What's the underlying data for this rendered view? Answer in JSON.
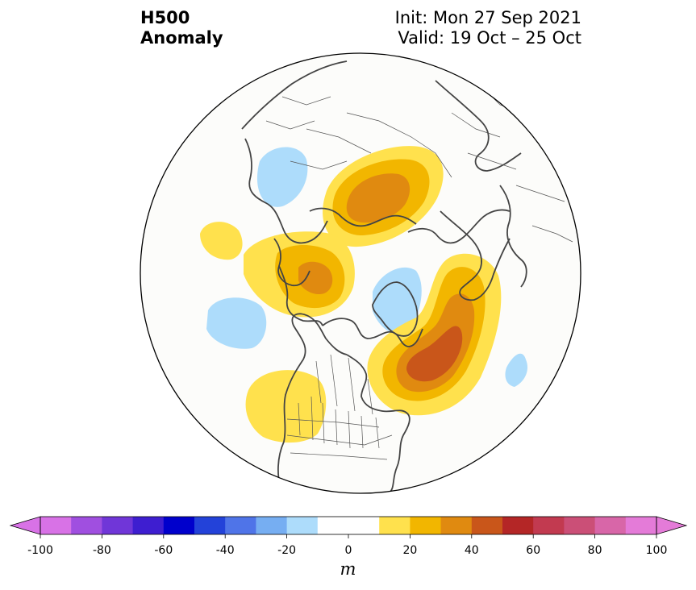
{
  "title": {
    "line1": "H500",
    "line2": "Anomaly",
    "init": "Init: Mon 27 Sep 2021",
    "valid": "Valid: 19 Oct – 25 Oct"
  },
  "colorbar": {
    "unit": "m",
    "ticks": [
      "-100",
      "-80",
      "-60",
      "-40",
      "-20",
      "0",
      "20",
      "40",
      "60",
      "80",
      "100"
    ],
    "colors": [
      "#d872e6",
      "#a04fe0",
      "#7036d8",
      "#3e1ed0",
      "#0000cc",
      "#2342d9",
      "#4f74e8",
      "#76aef2",
      "#addcfb",
      "#ffffff",
      "#ffffff",
      "#ffe14d",
      "#f2b600",
      "#e08a10",
      "#c9561a",
      "#b42626",
      "#c23a50",
      "#cb4f77",
      "#d866a8",
      "#e47bd8"
    ],
    "extend_low": "#d872e6",
    "extend_high": "#e47bd8"
  },
  "map": {
    "projection": "north-polar-stereographic",
    "field": "500 hPa geopotential height anomaly",
    "anomaly_colors": {
      "pos_10": "#ffe14d",
      "pos_20": "#f2b600",
      "pos_30": "#e08a10",
      "pos_40": "#c9561a",
      "neg_10": "#addcfb"
    }
  }
}
